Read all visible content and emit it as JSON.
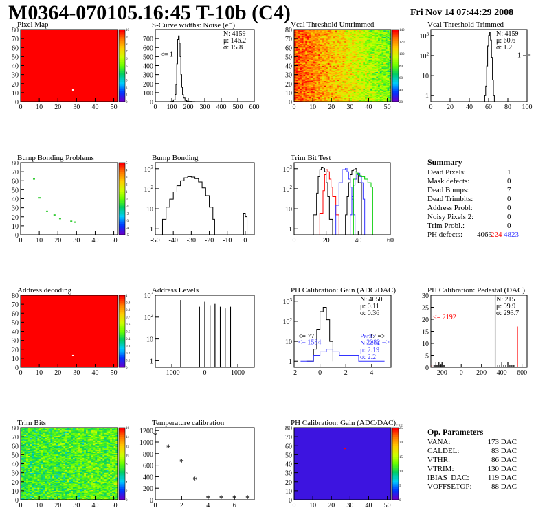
{
  "header": {
    "title": "M0364-070105.16:45 T-10b (C4)",
    "timestamp": "Fri Nov 14 07:44:29 2008"
  },
  "colors": {
    "red": "#ff0000",
    "blue": "#3333ff",
    "green": "#00cc00",
    "black": "#000000"
  },
  "chart_data": [
    {
      "id": "pixel_map",
      "type": "heatmap",
      "title": "Pixel Map",
      "xlim": [
        0,
        52
      ],
      "ylim": [
        0,
        80
      ],
      "xticks": [
        0,
        10,
        20,
        30,
        40,
        50
      ],
      "yticks": [
        0,
        10,
        20,
        30,
        40,
        50,
        60,
        70,
        80
      ],
      "zlim": [
        0,
        10
      ],
      "zticks": [
        0,
        1,
        2,
        3,
        4,
        5,
        6,
        7,
        8,
        9,
        10
      ],
      "fill": "uniform",
      "uniform_value": 10,
      "points": [
        {
          "x": 28,
          "y": 13,
          "z": 0
        }
      ]
    },
    {
      "id": "scurve_noise",
      "type": "line",
      "title": "S-Curve widths: Noise (e⁻)",
      "xlim": [
        0,
        600
      ],
      "ylim": [
        0,
        800
      ],
      "xticks": [
        0,
        100,
        200,
        300,
        400,
        500,
        600
      ],
      "yticks": [
        0,
        100,
        200,
        300,
        400,
        500,
        600,
        700
      ],
      "stats": [
        "N: 4159",
        "μ: 146.2",
        "σ: 15.8"
      ],
      "annotations": [
        {
          "text": "<= 1",
          "x": 30,
          "y": 500,
          "color": "#000000"
        }
      ],
      "series": [
        {
          "color": "#000000",
          "x": [
            80,
            90,
            100,
            110,
            120,
            125,
            130,
            135,
            140,
            145,
            150,
            155,
            160,
            165,
            170,
            180,
            190,
            200,
            220,
            240
          ],
          "y": [
            0,
            2,
            6,
            20,
            80,
            190,
            420,
            690,
            730,
            650,
            500,
            300,
            160,
            80,
            40,
            14,
            6,
            3,
            1,
            0
          ]
        }
      ]
    },
    {
      "id": "vcal_untrimmed",
      "type": "heatmap",
      "title": "Vcal Threshold Untrimmed",
      "xlim": [
        0,
        52
      ],
      "ylim": [
        0,
        80
      ],
      "xticks": [
        0,
        10,
        20,
        30,
        40,
        50
      ],
      "yticks": [
        0,
        10,
        20,
        30,
        40,
        50,
        60,
        70,
        80
      ],
      "zlim": [
        0,
        140
      ],
      "zticks": [
        20,
        40,
        60,
        80,
        100,
        120,
        140
      ],
      "fill": "noise",
      "noise_center": 100,
      "noise_spread": 22,
      "x_gradient": -0.45
    },
    {
      "id": "vcal_trimmed",
      "type": "line",
      "title": "Vcal Threshold Trimmed",
      "xlim": [
        0,
        100
      ],
      "ylim": [
        0.5,
        2000
      ],
      "yscale": "log",
      "xticks": [
        0,
        20,
        40,
        60,
        80,
        100
      ],
      "yticks": [
        1,
        10,
        100,
        1000
      ],
      "stats": [
        "N: 4159",
        "μ: 60.6",
        "σ: 1.2"
      ],
      "annotations": [
        {
          "text": "1 =>",
          "x": 90,
          "y": 80,
          "color": "#000000"
        }
      ],
      "series": [
        {
          "color": "#000000",
          "x": [
            55,
            56,
            57,
            58,
            59,
            60,
            61,
            62,
            63,
            64,
            65,
            66
          ],
          "y": [
            0.5,
            1,
            3,
            30,
            300,
            1000,
            1500,
            600,
            80,
            6,
            1,
            0.5
          ]
        }
      ]
    },
    {
      "id": "bump_problems",
      "type": "heatmap",
      "title": "Bump Bonding Problems",
      "xlim": [
        0,
        52
      ],
      "ylim": [
        0,
        80
      ],
      "xticks": [
        0,
        10,
        20,
        30,
        40,
        50
      ],
      "yticks": [
        0,
        10,
        20,
        30,
        40,
        50,
        60,
        70,
        80
      ],
      "zlim": [
        -5,
        5
      ],
      "zticks": [
        -5,
        -4,
        -3,
        -2,
        -1,
        0,
        1,
        2,
        3,
        4,
        5
      ],
      "fill": "none",
      "points": [
        {
          "x": 7,
          "y": 62,
          "z": 0
        },
        {
          "x": 10,
          "y": 41,
          "z": 0
        },
        {
          "x": 14,
          "y": 26,
          "z": 0
        },
        {
          "x": 18,
          "y": 22,
          "z": 0
        },
        {
          "x": 21,
          "y": 18,
          "z": 0
        },
        {
          "x": 27,
          "y": 15,
          "z": 0
        },
        {
          "x": 29,
          "y": 14,
          "z": 0
        }
      ]
    },
    {
      "id": "bump_bonding",
      "type": "line",
      "title": "Bump Bonding",
      "xlim": [
        -50,
        5
      ],
      "ylim": [
        0.5,
        2000
      ],
      "yscale": "log",
      "xticks": [
        -50,
        -40,
        -30,
        -20,
        -10,
        0
      ],
      "yticks": [
        1,
        10,
        100,
        1000
      ],
      "series": [
        {
          "color": "#000000",
          "x": [
            -48,
            -46,
            -44,
            -42,
            -40,
            -38,
            -36,
            -34,
            -32,
            -30,
            -28,
            -26,
            -24,
            -22,
            -20,
            -18,
            -17,
            -3,
            -1,
            0,
            1
          ],
          "y": [
            0.5,
            3,
            12,
            30,
            70,
            140,
            250,
            350,
            400,
            380,
            320,
            220,
            110,
            45,
            12,
            3,
            0.5,
            0.5,
            6,
            4,
            0.5
          ]
        }
      ]
    },
    {
      "id": "trim_bit_test",
      "type": "line",
      "title": "Trim Bit Test",
      "xlim": [
        0,
        60
      ],
      "ylim": [
        0.5,
        2000
      ],
      "yscale": "log",
      "xticks": [
        0,
        20,
        40,
        60
      ],
      "yticks": [
        1,
        10,
        100,
        1000
      ],
      "series": [
        {
          "color": "#000000",
          "x": [
            10,
            12,
            14,
            15,
            16,
            17,
            18,
            19,
            20,
            21,
            22,
            24
          ],
          "y": [
            0.5,
            5,
            60,
            400,
            900,
            1200,
            1100,
            700,
            200,
            40,
            3,
            0.5
          ]
        },
        {
          "color": "#ff0000",
          "x": [
            14,
            16,
            18,
            19,
            20,
            21,
            22,
            23,
            24,
            26,
            28
          ],
          "y": [
            0.5,
            6,
            80,
            500,
            900,
            700,
            300,
            120,
            40,
            5,
            0.5
          ]
        },
        {
          "color": "#3333ff",
          "x": [
            24,
            26,
            28,
            30,
            32,
            33,
            34,
            35,
            36,
            37,
            38
          ],
          "y": [
            0.5,
            15,
            200,
            900,
            1100,
            700,
            300,
            120,
            30,
            5,
            0.5
          ]
        },
        {
          "color": "#000000",
          "x": [
            30,
            32,
            33,
            34,
            35,
            36,
            37,
            38,
            39,
            40,
            42
          ],
          "y": [
            0.5,
            5,
            40,
            200,
            500,
            800,
            900,
            1000,
            600,
            200,
            0.5
          ]
        },
        {
          "color": "#3333ff",
          "x": [
            34,
            35,
            36,
            37,
            38,
            39,
            40,
            41,
            42,
            43,
            44
          ],
          "y": [
            0.5,
            5,
            40,
            150,
            300,
            500,
            600,
            400,
            200,
            30,
            0.5
          ]
        },
        {
          "color": "#00cc00",
          "x": [
            36,
            37,
            38,
            39,
            40,
            41,
            42,
            44,
            46,
            48,
            49
          ],
          "y": [
            0.5,
            300,
            700,
            600,
            500,
            450,
            400,
            300,
            200,
            120,
            0.5
          ]
        }
      ]
    },
    {
      "id": "address_decoding",
      "type": "heatmap",
      "title": "Address decoding",
      "xlim": [
        0,
        52
      ],
      "ylim": [
        0,
        80
      ],
      "xticks": [
        0,
        10,
        20,
        30,
        40,
        50
      ],
      "yticks": [
        0,
        10,
        20,
        30,
        40,
        50,
        60,
        70,
        80
      ],
      "zlim": [
        0,
        1
      ],
      "zticks": [
        0,
        0.1,
        0.2,
        0.3,
        0.4,
        0.5,
        0.6,
        0.7,
        0.8,
        0.9,
        1
      ],
      "fill": "uniform",
      "uniform_value": 1,
      "points": [
        {
          "x": 28,
          "y": 13,
          "z": 0
        }
      ]
    },
    {
      "id": "address_levels",
      "type": "line",
      "title": "Address Levels",
      "xlim": [
        -1500,
        1500
      ],
      "ylim": [
        0.5,
        1000
      ],
      "yscale": "log",
      "xticks": [
        -1000,
        0,
        1000
      ],
      "yticks": [
        1,
        10,
        100,
        1000
      ],
      "series": [
        {
          "color": "#000000",
          "spikes": true,
          "x": [
            -730,
            -160,
            0,
            160,
            310,
            470,
            620,
            780
          ],
          "y": [
            600,
            300,
            500,
            350,
            400,
            300,
            250,
            300
          ]
        }
      ]
    },
    {
      "id": "ph_gain",
      "type": "line",
      "title": "PH Calibration: Gain (ADC/DAC)",
      "xlim": [
        -2,
        5.5
      ],
      "ylim": [
        0.5,
        2000
      ],
      "yscale": "log",
      "xticks": [
        -2,
        0,
        2,
        4
      ],
      "yticks": [
        1,
        10,
        100,
        1000
      ],
      "stats": [
        "N: 4050",
        "μ: 0.11",
        "σ: 0.36"
      ],
      "stats_par": [
        "Par1:",
        "N: 293",
        "μ: 2.19",
        "σ: 2.2"
      ],
      "annotations": [
        {
          "text": "<= 77",
          "x": -1.7,
          "y": 14,
          "color": "#000000"
        },
        {
          "text": "<= 1584",
          "x": -1.7,
          "y": 7,
          "color": "#3333ff"
        },
        {
          "text": "32 =>",
          "x": 3.8,
          "y": 14,
          "color": "#000000"
        },
        {
          "text": "2282 =>",
          "x": 3.6,
          "y": 7,
          "color": "#3333ff"
        }
      ],
      "series": [
        {
          "color": "#000000",
          "x": [
            -1,
            -0.5,
            -0.25,
            0,
            0.25,
            0.5,
            0.75,
            1
          ],
          "y": [
            1,
            4,
            40,
            300,
            500,
            120,
            10,
            1
          ]
        },
        {
          "color": "#3333ff",
          "x": [
            -1.5,
            -0.5,
            0,
            0.5,
            1,
            1.5,
            2,
            3,
            4,
            5
          ],
          "y": [
            1,
            2,
            3,
            4,
            3,
            2,
            2,
            1,
            1,
            1
          ]
        }
      ]
    },
    {
      "id": "ph_pedestal",
      "type": "line",
      "title": "PH Calibration: Pedestal (DAC)",
      "xlim": [
        -300,
        650
      ],
      "ylim": [
        0,
        30
      ],
      "xticks": [
        -200,
        0,
        200,
        400,
        600
      ],
      "yticks": [
        0,
        5,
        10,
        15,
        20,
        25,
        30
      ],
      "stats": [
        "N: 215",
        "μ: 99.9",
        "σ: 293.7"
      ],
      "annotations": [
        {
          "text": "<= 2192",
          "x": -280,
          "y": 20,
          "color": "#ff0000"
        }
      ],
      "series": [
        {
          "color": "#000000",
          "spikes": true,
          "x": [
            -270,
            -260,
            -250,
            -240,
            -230,
            -220,
            -210,
            -200,
            -190,
            -180,
            -170,
            335,
            360,
            380,
            400,
            420,
            440,
            460,
            480,
            500,
            520
          ],
          "y": [
            1,
            1,
            2,
            1,
            1,
            2,
            1,
            1,
            2,
            1,
            1,
            30,
            1,
            1,
            2,
            1,
            1,
            2,
            1,
            1,
            1
          ]
        },
        {
          "color": "#ff0000",
          "spikes": true,
          "x": [
            -290,
            555
          ],
          "y": [
            1,
            17
          ]
        }
      ]
    },
    {
      "id": "trim_bits",
      "type": "heatmap",
      "title": "Trim Bits",
      "xlim": [
        0,
        52
      ],
      "ylim": [
        0,
        80
      ],
      "xticks": [
        0,
        10,
        20,
        30,
        40,
        50
      ],
      "yticks": [
        0,
        10,
        20,
        30,
        40,
        50,
        60,
        70,
        80
      ],
      "zlim": [
        0,
        16
      ],
      "zticks": [
        0,
        2,
        4,
        6,
        8,
        10,
        12,
        14,
        16
      ],
      "fill": "noise",
      "noise_center": 7.5,
      "noise_spread": 2.5,
      "x_gradient": 0.05
    },
    {
      "id": "temperature",
      "type": "scatter",
      "title": "Temperature calibration",
      "xlim": [
        0,
        7.5
      ],
      "ylim": [
        0,
        1250
      ],
      "xticks": [
        0,
        2,
        4,
        6
      ],
      "yticks": [
        0,
        200,
        400,
        600,
        800,
        1000,
        1200
      ],
      "x": [
        0,
        1,
        2,
        3,
        4,
        5,
        6,
        7
      ],
      "y": [
        1120,
        910,
        660,
        350,
        30,
        30,
        30,
        30
      ]
    },
    {
      "id": "ph_gain_map",
      "type": "heatmap",
      "title": "PH Calibration: Gain (ADC/DAC)",
      "xlim": [
        0,
        52
      ],
      "ylim": [
        0,
        80
      ],
      "xticks": [
        0,
        10,
        20,
        30,
        40,
        50
      ],
      "yticks": [
        0,
        10,
        20,
        30,
        40,
        50,
        60,
        70,
        80
      ],
      "zlim": [
        0,
        25000
      ],
      "zticks": [
        0,
        5,
        10,
        15,
        20,
        25
      ],
      "zexp": "×10³",
      "fill": "uniform",
      "uniform_value": 1200,
      "points": [
        {
          "x": 27,
          "y": 57,
          "z": 25000
        }
      ]
    }
  ],
  "summary": {
    "title": "Summary",
    "rows": [
      {
        "label": "Dead Pixels:",
        "value": "1"
      },
      {
        "label": "Mask defects:",
        "value": "0"
      },
      {
        "label": "Dead Bumps:",
        "value": "7"
      },
      {
        "label": "Dead Trimbits:",
        "value": "0"
      },
      {
        "label": "Address Probl:",
        "value": "0"
      },
      {
        "label": "Noisy Pixels 2:",
        "value": "0"
      },
      {
        "label": "Trim Probl.:",
        "value": "0"
      }
    ],
    "ph_label": "PH defects:",
    "ph_values": [
      "4063",
      "224",
      "4823"
    ]
  },
  "op_params": {
    "title": "Op. Parameters",
    "rows": [
      {
        "label": "VANA:",
        "value": "173 DAC"
      },
      {
        "label": "CALDEL:",
        "value": "83 DAC"
      },
      {
        "label": "VTHR:",
        "value": "86 DAC"
      },
      {
        "label": "VTRIM:",
        "value": "130 DAC"
      },
      {
        "label": "IBIAS_DAC:",
        "value": "119 DAC"
      },
      {
        "label": "VOFFSETOP:",
        "value": "88 DAC"
      }
    ]
  }
}
